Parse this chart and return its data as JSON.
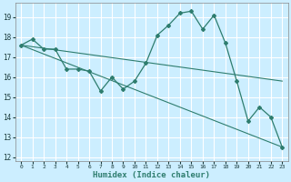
{
  "xlabel": "Humidex (Indice chaleur)",
  "bg_color": "#cceeff",
  "grid_color": "#ffffff",
  "line_color": "#2e7d6e",
  "xlim": [
    -0.5,
    23.5
  ],
  "ylim": [
    11.8,
    19.7
  ],
  "yticks": [
    12,
    13,
    14,
    15,
    16,
    17,
    18,
    19
  ],
  "xticks": [
    0,
    1,
    2,
    3,
    4,
    5,
    6,
    7,
    8,
    9,
    10,
    11,
    12,
    13,
    14,
    15,
    16,
    17,
    18,
    19,
    20,
    21,
    22,
    23
  ],
  "line1_x": [
    0,
    1,
    2,
    3,
    4,
    5,
    6,
    7,
    8,
    9,
    10,
    11,
    12,
    13,
    14,
    15,
    16,
    17,
    18,
    19,
    20,
    21,
    22,
    23
  ],
  "line1_y": [
    17.6,
    17.9,
    17.4,
    17.4,
    16.4,
    16.4,
    16.3,
    15.3,
    16.0,
    15.4,
    15.8,
    16.7,
    18.1,
    18.6,
    19.2,
    19.3,
    18.4,
    19.1,
    17.7,
    15.8,
    13.8,
    14.5,
    14.0,
    12.5
  ],
  "line2_x": [
    0,
    23
  ],
  "line2_y": [
    17.6,
    15.8
  ],
  "line3_x": [
    0,
    23
  ],
  "line3_y": [
    17.6,
    12.5
  ]
}
